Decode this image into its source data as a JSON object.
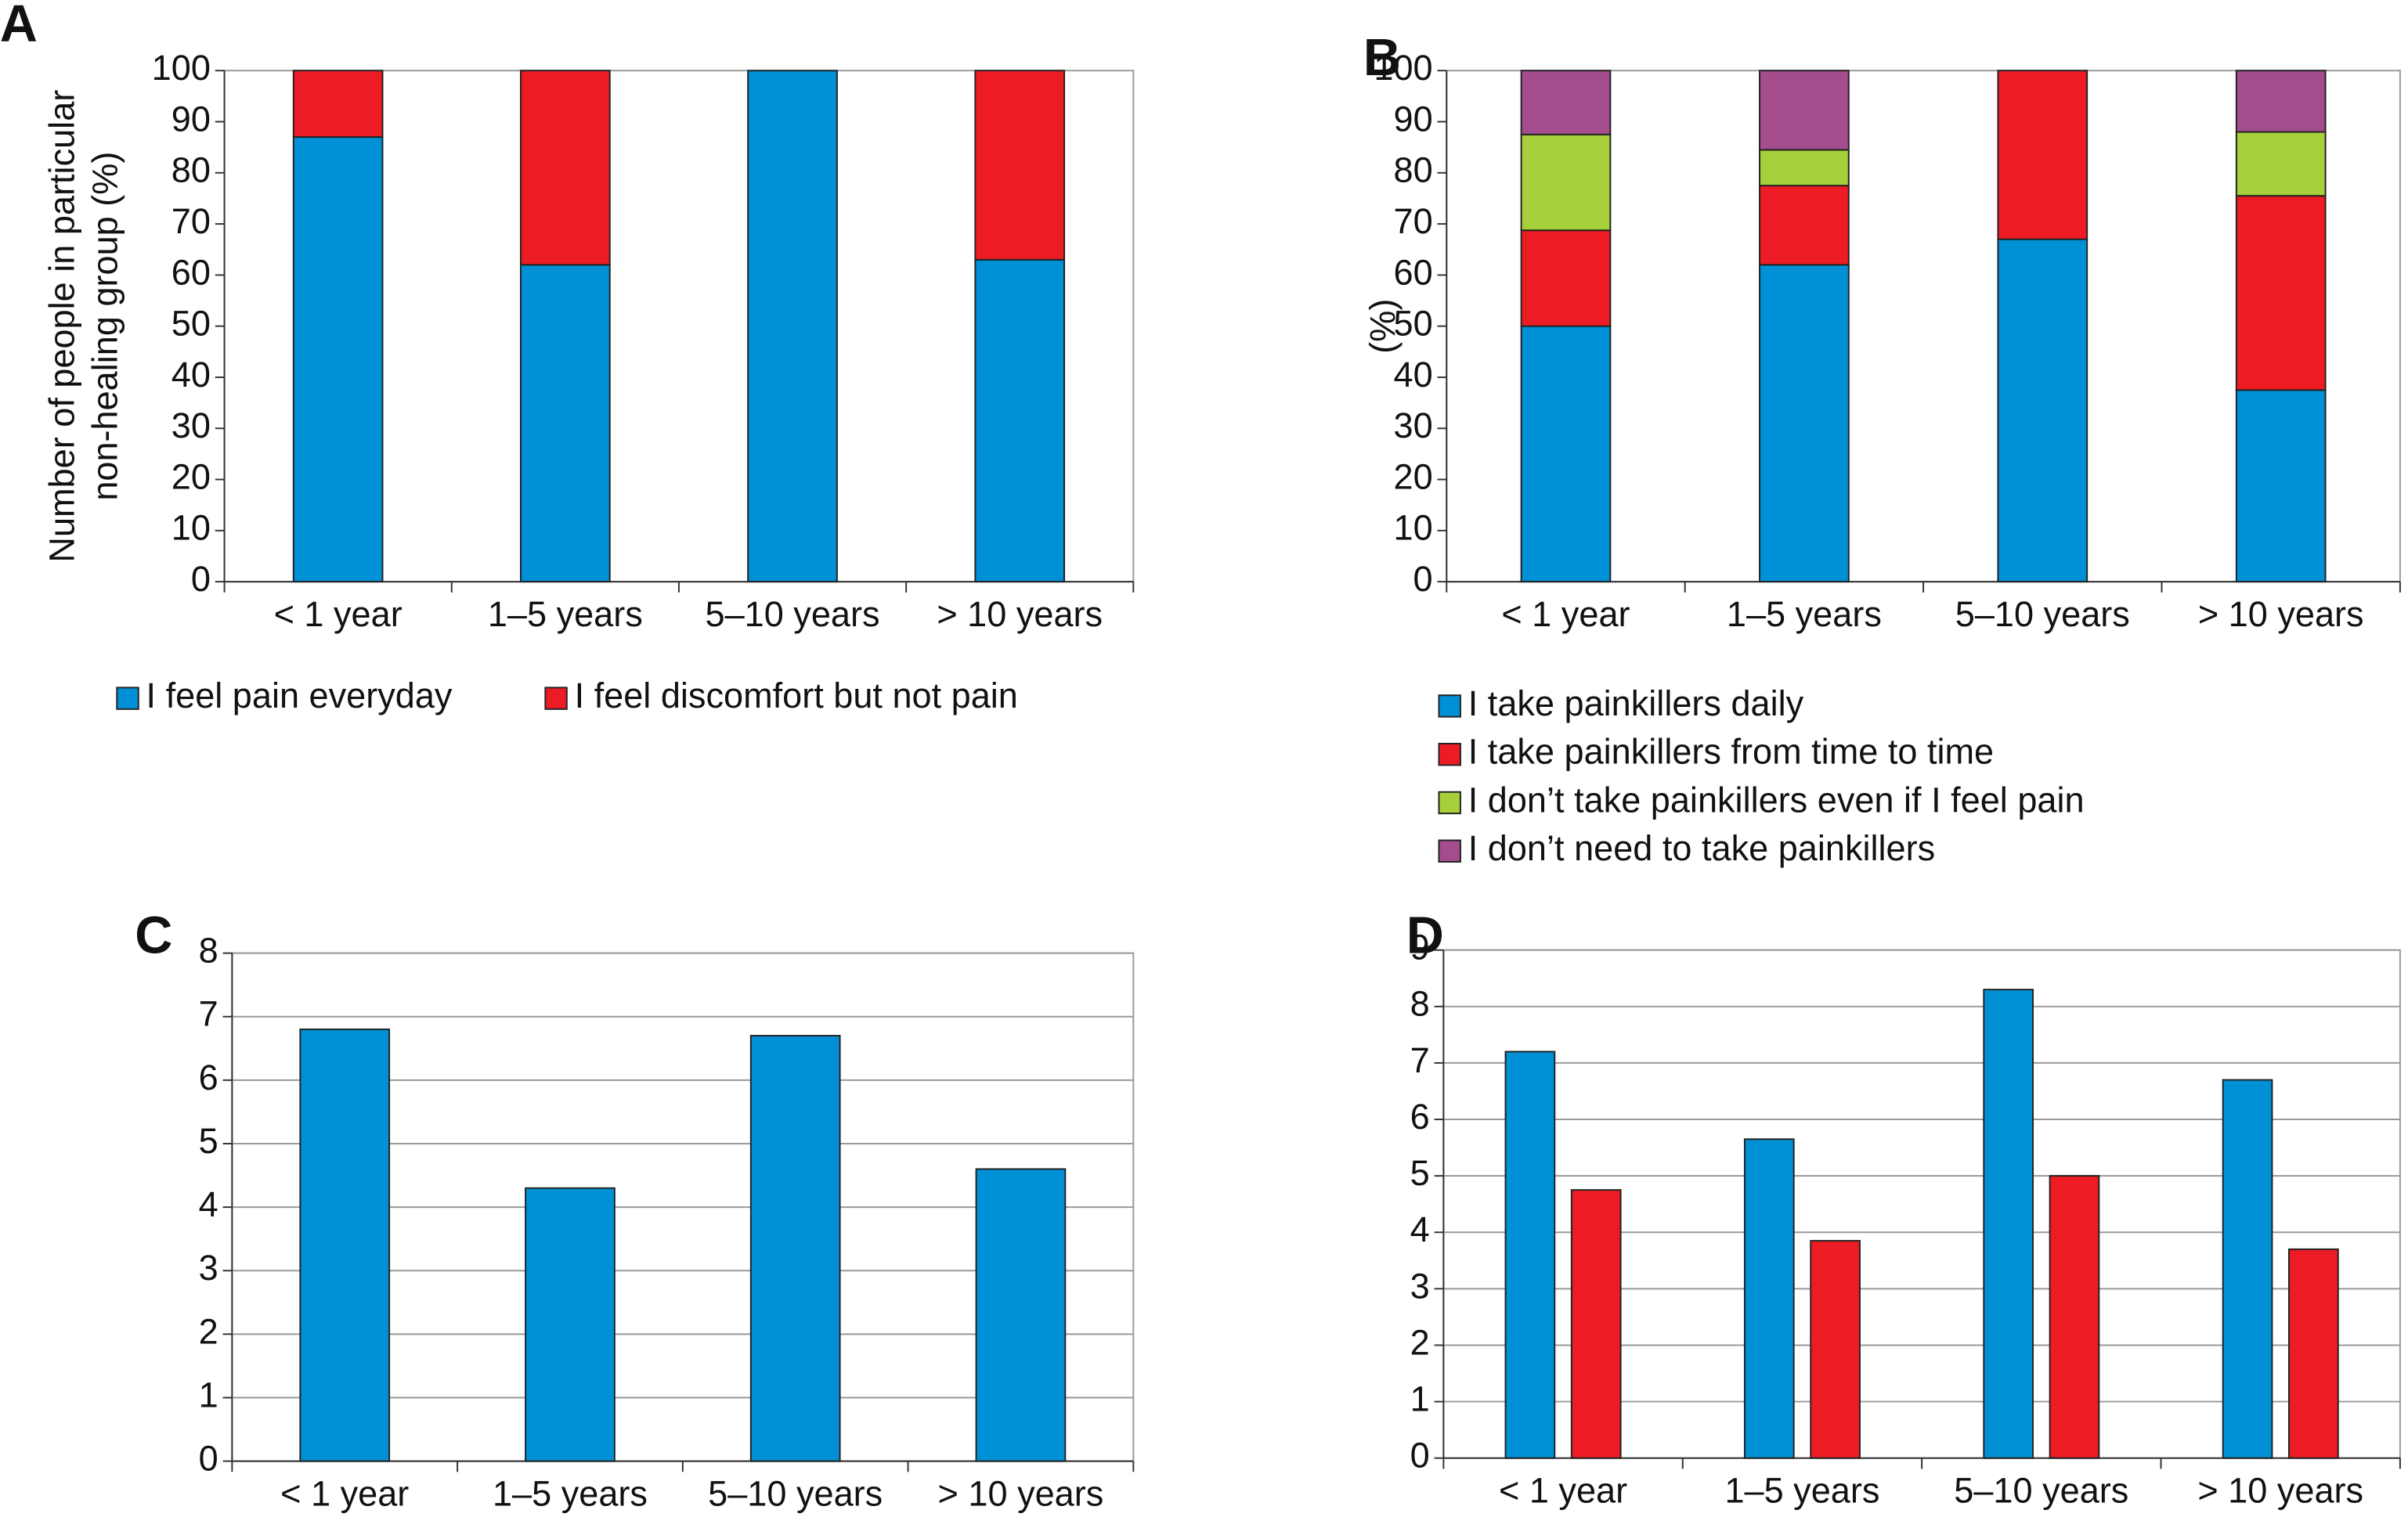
{
  "chart_data": [
    {
      "type": "stacked_bar",
      "label": "A",
      "ylabel": [
        "Number of people in particular",
        "non-healing group (%)"
      ],
      "categories": [
        "< 1 year",
        "1–5 years",
        "5–10 years",
        "> 10 years"
      ],
      "series": [
        {
          "name": "I feel pain everyday",
          "color": "#0090d6",
          "values": [
            87,
            62,
            100,
            63
          ]
        },
        {
          "name": "I feel discomfort but not pain",
          "color": "#ed1c24",
          "values": [
            13,
            38,
            0,
            37
          ]
        }
      ],
      "ylim": [
        0,
        100
      ],
      "yticks": [
        0,
        10,
        20,
        30,
        40,
        50,
        60,
        70,
        80,
        90,
        100
      ],
      "grid": false,
      "legend": "bottom"
    },
    {
      "type": "stacked_bar",
      "label": "B",
      "ylabel": "(%)",
      "categories": [
        "< 1 year",
        "1–5 years",
        "5–10 years",
        "> 10 years"
      ],
      "series": [
        {
          "name": "I take painkillers daily",
          "color": "#0090d6",
          "values": [
            50,
            62,
            67,
            37.5
          ]
        },
        {
          "name": "I take painkillers from time to time",
          "color": "#ed1c24",
          "values": [
            18.75,
            15.5,
            33,
            38
          ]
        },
        {
          "name": "I don’t take painkillers even if I feel pain",
          "color": "#a6cf3a",
          "values": [
            18.75,
            7,
            0,
            12.5
          ]
        },
        {
          "name": "I don’t need to take painkillers",
          "color": "#a44c8c",
          "values": [
            12.5,
            15.5,
            0,
            12
          ]
        }
      ],
      "ylim": [
        0,
        100
      ],
      "yticks": [
        0,
        10,
        20,
        30,
        40,
        50,
        60,
        70,
        80,
        90,
        100
      ],
      "grid": false,
      "legend": "bottom"
    },
    {
      "type": "bar",
      "label": "C",
      "categories": [
        "< 1 year",
        "1–5 years",
        "5–10 years",
        "> 10 years"
      ],
      "values": [
        6.8,
        4.3,
        6.7,
        4.6
      ],
      "color": "#0090d6",
      "ylim": [
        0,
        8
      ],
      "yticks": [
        0,
        1,
        2,
        3,
        4,
        5,
        6,
        7,
        8
      ],
      "grid": true
    },
    {
      "type": "grouped_bar",
      "label": "D",
      "categories": [
        "< 1 year",
        "1–5 years",
        "5–10 years",
        "> 10 years"
      ],
      "series": [
        {
          "color": "#0090d6",
          "values": [
            7.2,
            5.65,
            8.3,
            6.7
          ]
        },
        {
          "color": "#ed1c24",
          "values": [
            4.75,
            3.85,
            5,
            3.7
          ]
        }
      ],
      "ylim": [
        0,
        9
      ],
      "yticks": [
        0,
        1,
        2,
        3,
        4,
        5,
        6,
        7,
        8,
        9
      ],
      "grid": true
    }
  ]
}
